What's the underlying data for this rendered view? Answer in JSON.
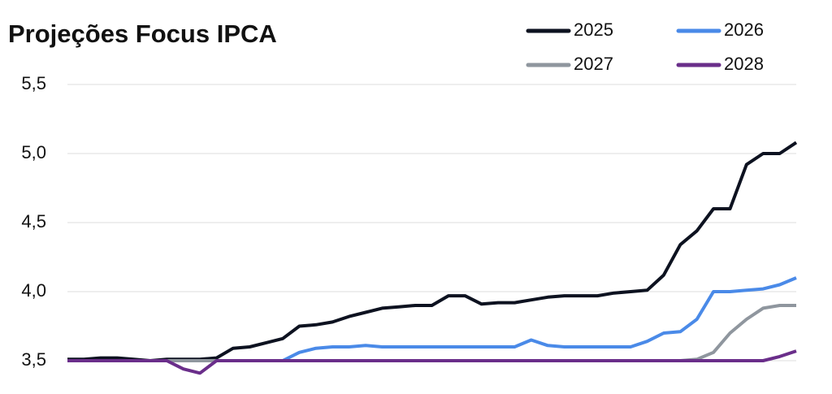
{
  "chart_data": {
    "type": "line",
    "title": "Projeções Focus IPCA",
    "ylim": [
      3.4,
      5.5
    ],
    "yticks": [
      {
        "value": 3.5,
        "label": "3,5"
      },
      {
        "value": 4.0,
        "label": "4,0"
      },
      {
        "value": 4.5,
        "label": "4,5"
      },
      {
        "value": 5.0,
        "label": "5,0"
      },
      {
        "value": 5.5,
        "label": "5,5"
      }
    ],
    "grid": true,
    "legend": "top-right",
    "series": [
      {
        "name": "2025",
        "color": "#0d1220",
        "values": [
          3.51,
          3.51,
          3.52,
          3.52,
          3.51,
          3.5,
          3.51,
          3.51,
          3.51,
          3.52,
          3.59,
          3.6,
          3.63,
          3.66,
          3.75,
          3.76,
          3.78,
          3.82,
          3.85,
          3.88,
          3.89,
          3.9,
          3.9,
          3.97,
          3.97,
          3.91,
          3.92,
          3.92,
          3.94,
          3.96,
          3.97,
          3.97,
          3.97,
          3.99,
          4.0,
          4.01,
          4.12,
          4.34,
          4.44,
          4.6,
          4.6,
          4.92,
          5.0,
          5.0,
          5.08
        ]
      },
      {
        "name": "2026",
        "color": "#4a8ae8",
        "values": [
          3.5,
          3.5,
          3.5,
          3.5,
          3.5,
          3.5,
          3.5,
          3.5,
          3.5,
          3.5,
          3.5,
          3.5,
          3.5,
          3.5,
          3.56,
          3.59,
          3.6,
          3.6,
          3.61,
          3.6,
          3.6,
          3.6,
          3.6,
          3.6,
          3.6,
          3.6,
          3.6,
          3.6,
          3.65,
          3.61,
          3.6,
          3.6,
          3.6,
          3.6,
          3.6,
          3.64,
          3.7,
          3.71,
          3.8,
          4.0,
          4.0,
          4.01,
          4.02,
          4.05,
          4.1
        ]
      },
      {
        "name": "2027",
        "color": "#8f969e",
        "values": [
          3.5,
          3.5,
          3.5,
          3.5,
          3.5,
          3.5,
          3.5,
          3.5,
          3.5,
          3.5,
          3.5,
          3.5,
          3.5,
          3.5,
          3.5,
          3.5,
          3.5,
          3.5,
          3.5,
          3.5,
          3.5,
          3.5,
          3.5,
          3.5,
          3.5,
          3.5,
          3.5,
          3.5,
          3.5,
          3.5,
          3.5,
          3.5,
          3.5,
          3.5,
          3.5,
          3.5,
          3.5,
          3.5,
          3.51,
          3.56,
          3.7,
          3.8,
          3.88,
          3.9,
          3.9
        ]
      },
      {
        "name": "2028",
        "color": "#6a2e8a",
        "values": [
          3.5,
          3.5,
          3.5,
          3.5,
          3.5,
          3.5,
          3.5,
          3.44,
          3.41,
          3.5,
          3.5,
          3.5,
          3.5,
          3.5,
          3.5,
          3.5,
          3.5,
          3.5,
          3.5,
          3.5,
          3.5,
          3.5,
          3.5,
          3.5,
          3.5,
          3.5,
          3.5,
          3.5,
          3.5,
          3.5,
          3.5,
          3.5,
          3.5,
          3.5,
          3.5,
          3.5,
          3.5,
          3.5,
          3.5,
          3.5,
          3.5,
          3.5,
          3.5,
          3.53,
          3.57
        ]
      }
    ]
  }
}
